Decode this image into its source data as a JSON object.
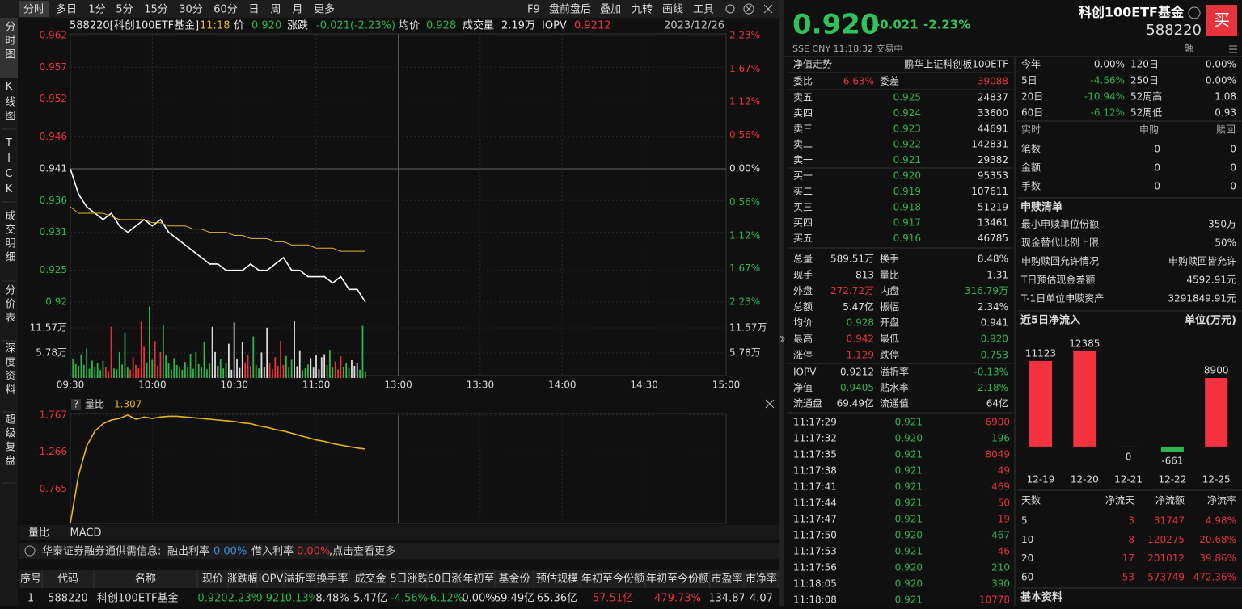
{
  "toolbar": {
    "periods": [
      "分时",
      "多日",
      "1分",
      "5分",
      "15分",
      "30分",
      "60分",
      "日",
      "周",
      "月",
      "更多"
    ],
    "tools": [
      "F9",
      "盘前盘后",
      "叠加",
      "九转",
      "画线",
      "工具"
    ]
  },
  "side_tabs": [
    "分时图",
    "K线图",
    "TICK",
    "成交明细",
    "分价表",
    "深度资料",
    "超级复盘"
  ],
  "chart_data": [
    {
      "type": "line",
      "header": [
        {
          "text": "588220[科创100ETF基金]",
          "color": "#e6e6e6"
        },
        {
          "text": "11:18",
          "color": "#e6b422"
        },
        {
          "text": "价",
          "color": "#e6e6e6"
        },
        {
          "text": "0.920",
          "color": "#2fb54a"
        },
        {
          "text": "涨跌",
          "color": "#e6e6e6"
        },
        {
          "text": "-0.021(-2.23%)",
          "color": "#2fb54a"
        },
        {
          "text": "均价",
          "color": "#e6e6e6"
        },
        {
          "text": "0.928",
          "color": "#2fb54a"
        },
        {
          "text": "成交量",
          "color": "#e6e6e6"
        },
        {
          "text": "2.19万",
          "color": "#e6e6e6"
        },
        {
          "text": "IOPV",
          "color": "#e6e6e6"
        },
        {
          "text": "0.9212",
          "color": "#e8323c"
        },
        {
          "text": "2023/12/26",
          "color": "#bbbbbb"
        }
      ],
      "x": [
        0,
        3,
        6,
        9,
        12,
        15,
        18,
        21,
        24,
        27,
        30,
        33,
        36,
        39,
        42,
        45,
        48,
        51,
        54,
        57,
        60,
        63,
        66,
        69,
        72,
        75,
        78,
        81,
        84,
        87,
        90,
        93,
        96,
        99,
        102,
        105,
        108
      ],
      "xlim": [
        0,
        240
      ],
      "xticks": [
        {
          "value": 0,
          "label": "09:30"
        },
        {
          "value": 30,
          "label": "10:00"
        },
        {
          "value": 60,
          "label": "10:30"
        },
        {
          "value": 90,
          "label": "11:00"
        },
        {
          "value": 120,
          "label": "13:00"
        },
        {
          "value": 150,
          "label": "13:30"
        },
        {
          "value": 180,
          "label": "14:00"
        },
        {
          "value": 210,
          "label": "14:30"
        },
        {
          "value": 240,
          "label": "15:00"
        }
      ],
      "ylim": [
        0.92,
        0.962
      ],
      "yticks": [
        0.962,
        0.957,
        0.952,
        0.946,
        0.941,
        0.936,
        0.931,
        0.925,
        0.92
      ],
      "y2lim": [
        -2.23,
        2.23
      ],
      "y2ticks": [
        {
          "value": 2.23,
          "label": "2.23%"
        },
        {
          "value": 1.67,
          "label": "1.67%"
        },
        {
          "value": 1.12,
          "label": "1.12%"
        },
        {
          "value": 0.56,
          "label": "0.56%"
        },
        {
          "value": 0,
          "label": "0.00%"
        },
        {
          "value": -0.56,
          "label": "0.56%"
        },
        {
          "value": -1.12,
          "label": "1.12%"
        },
        {
          "value": -1.67,
          "label": "1.67%"
        },
        {
          "value": -2.23,
          "label": "2.23%"
        }
      ],
      "up_color": "#e8323c",
      "down_color": "#2fb54a",
      "series": [
        {
          "color": "#ffffff",
          "values": [
            0.941,
            0.937,
            0.935,
            0.934,
            0.933,
            0.934,
            0.932,
            0.931,
            0.932,
            0.933,
            0.932,
            0.933,
            0.931,
            0.93,
            0.929,
            0.928,
            0.927,
            0.926,
            0.926,
            0.925,
            0.925,
            0.925,
            0.926,
            0.925,
            0.925,
            0.926,
            0.927,
            0.925,
            0.925,
            0.924,
            0.924,
            0.924,
            0.923,
            0.924,
            0.922,
            0.922,
            0.92
          ]
        },
        {
          "color": "#e6b422",
          "values": [
            0.935,
            0.934,
            0.934,
            0.934,
            0.934,
            0.9335,
            0.933,
            0.933,
            0.933,
            0.933,
            0.9325,
            0.9325,
            0.932,
            0.932,
            0.932,
            0.9315,
            0.9315,
            0.931,
            0.931,
            0.931,
            0.9305,
            0.9305,
            0.93,
            0.93,
            0.93,
            0.9295,
            0.9295,
            0.929,
            0.929,
            0.929,
            0.9285,
            0.9285,
            0.9285,
            0.928,
            0.928,
            0.928,
            0.928
          ]
        }
      ]
    },
    {
      "type": "bar",
      "x": [
        1,
        2,
        3,
        4,
        5,
        6,
        7,
        8,
        9,
        10,
        11,
        12,
        13,
        14,
        15,
        16,
        17,
        18,
        19,
        20,
        21,
        22,
        23,
        24,
        25,
        26,
        27,
        28,
        29,
        30,
        31,
        32,
        33,
        34,
        35,
        36,
        37,
        38,
        39,
        40,
        41,
        42,
        43,
        44,
        45,
        46,
        47,
        48,
        49,
        50,
        51,
        52,
        53,
        54,
        55,
        56,
        57,
        58,
        59,
        60,
        61,
        62,
        63,
        64,
        65,
        66,
        67,
        68,
        69,
        70,
        71,
        72,
        73,
        74,
        75,
        76,
        77,
        78,
        79,
        80,
        81,
        82,
        83,
        84,
        85,
        86,
        87,
        88,
        89,
        90,
        91,
        92,
        93,
        94,
        95,
        96,
        97,
        98,
        99,
        100,
        101,
        102,
        103,
        104,
        105,
        106,
        107,
        108
      ],
      "values": [
        4.5,
        3.2,
        2.8,
        5.5,
        3.0,
        6.8,
        2.1,
        4.0,
        2.6,
        3.5,
        1.8,
        3.9,
        2.5,
        1.6,
        11.8,
        2.2,
        2.0,
        6.0,
        3.1,
        10.5,
        2.4,
        1.9,
        4.8,
        3.0,
        2.2,
        13.0,
        7.2,
        3.6,
        16.5,
        4.2,
        8.5,
        2.8,
        6.0,
        12.2,
        5.2,
        3.4,
        2.0,
        4.6,
        3.0,
        2.5,
        1.9,
        3.7,
        2.6,
        5.6,
        2.1,
        6.0,
        3.2,
        2.4,
        8.4,
        2.0,
        3.3,
        11.8,
        6.0,
        2.8,
        4.4,
        2.2,
        3.5,
        7.9,
        1.9,
        12.8,
        4.4,
        2.3,
        8.2,
        3.6,
        5.4,
        2.8,
        9.6,
        3.0,
        2.2,
        5.9,
        2.6,
        11.6,
        3.4,
        2.0,
        4.8,
        2.8,
        8.6,
        3.0,
        5.1,
        2.4,
        4.2,
        13.2,
        2.7,
        6.4,
        1.8,
        2.2,
        3.1,
        4.6,
        2.4,
        5.2,
        2.0,
        4.8,
        5.5,
        3.0,
        6.5,
        2.4,
        3.8,
        2.0,
        5.0,
        2.6,
        3.4,
        2.2,
        4.1,
        2.8,
        3.5,
        1.9,
        12.0,
        1.5
      ],
      "ylim": [
        0,
        17.35
      ],
      "yticks": [
        {
          "value": 11.57,
          "label": "11.57万"
        },
        {
          "value": 5.78,
          "label": "5.78万"
        }
      ],
      "up_color": "#e8323c",
      "down_color": "#2fb54a",
      "flat_color": "#dddddd"
    },
    {
      "type": "line",
      "help": "?",
      "title": "量比",
      "current": 1.307,
      "x": [
        0,
        3,
        6,
        9,
        12,
        15,
        18,
        21,
        24,
        27,
        30,
        33,
        36,
        39,
        42,
        45,
        48,
        51,
        54,
        57,
        60,
        63,
        66,
        69,
        72,
        75,
        78,
        81,
        84,
        87,
        90,
        93,
        96,
        99,
        102,
        105,
        108
      ],
      "ylim": [
        0.3,
        1.787
      ],
      "yticks": [
        1.767,
        1.266,
        0.765
      ],
      "tick_color": "#e8323c",
      "series": [
        {
          "color": "#e6b422",
          "values": [
            0.3,
            0.95,
            1.35,
            1.55,
            1.65,
            1.7,
            1.72,
            1.767,
            1.71,
            1.74,
            1.72,
            1.74,
            1.75,
            1.75,
            1.74,
            1.73,
            1.72,
            1.71,
            1.7,
            1.69,
            1.68,
            1.66,
            1.65,
            1.62,
            1.6,
            1.57,
            1.55,
            1.52,
            1.49,
            1.46,
            1.43,
            1.41,
            1.38,
            1.36,
            1.34,
            1.32,
            1.307
          ]
        }
      ]
    },
    {
      "type": "bar",
      "title": "近5日净流入",
      "unit": "单位(万元)",
      "categories": [
        "12-19",
        "12-20",
        "12-21",
        "12-22",
        "12-25"
      ],
      "values": [
        11123,
        12385,
        0,
        -661,
        8900
      ],
      "ylim": [
        -2000,
        13000
      ],
      "up_color": "#f5333f",
      "down_color": "#2fb54a"
    }
  ],
  "bottom_tabs": [
    "量比",
    "MACD"
  ],
  "notice": {
    "source": "华泰证券融券通供需信息:",
    "lend_label": "融出利率",
    "lend_rate": "0.00%",
    "borrow_label": "借入利率",
    "borrow_rate": "0.00%",
    "more": ",点击查看更多"
  },
  "table": {
    "header": [
      "序号",
      "代码",
      "名称",
      "现价",
      "涨跌幅",
      "IOPV",
      "溢折率",
      "换手率",
      "成交金",
      "5日涨跌",
      "60日涨",
      "年初至",
      "基金份",
      "预估规模",
      "年初至今份额",
      "年初至今份额",
      "市盈率",
      "市净率"
    ],
    "rows": [
      [
        "1",
        "588220",
        "科创100ETF基金",
        "0.920",
        "-2.23%",
        "0.921",
        "-0.13%",
        "8.48%",
        "5.47亿",
        "-4.56%",
        "-6.12%",
        "0.00%",
        "69.49亿",
        "65.36亿",
        "57.51亿",
        "479.73%",
        "134.87",
        "4.07"
      ]
    ],
    "colors": [
      [
        "#ddd",
        "#ddd",
        "#ddd",
        "#2fb54a",
        "#2fb54a",
        "#2fb54a",
        "#2fb54a",
        "#ddd",
        "#ddd",
        "#2fb54a",
        "#2fb54a",
        "#ddd",
        "#ddd",
        "#ddd",
        "#e8323c",
        "#e8323c",
        "#ddd",
        "#ddd"
      ]
    ]
  },
  "quote": {
    "name": "科创100ETF基金",
    "code": "588220",
    "buy": "买",
    "price": "0.920",
    "change": "-0.021",
    "change_pct": "-2.23%",
    "status": "SSE  CNY  11:18:32  交易中",
    "margin": "融",
    "color": "#2fc25b"
  },
  "nav": {
    "label": "净值走势",
    "index": "鹏华上证科创板100ETF"
  },
  "commission": [
    {
      "label": "委比",
      "value": "6.63%",
      "color": "#e8323c"
    },
    {
      "label": "委差",
      "value": "39088",
      "color": "#e8323c"
    }
  ],
  "order_book": {
    "price_color": "#2fb54a",
    "rows": [
      {
        "label": "卖五",
        "price": "0.925",
        "volume": "24837"
      },
      {
        "label": "卖四",
        "price": "0.924",
        "volume": "33600"
      },
      {
        "label": "卖三",
        "price": "0.923",
        "volume": "44691"
      },
      {
        "label": "卖二",
        "price": "0.922",
        "volume": "142831"
      },
      {
        "label": "卖一",
        "price": "0.921",
        "volume": "29382"
      },
      {
        "label": "买一",
        "price": "0.920",
        "volume": "95353"
      },
      {
        "label": "买二",
        "price": "0.919",
        "volume": "107611"
      },
      {
        "label": "买三",
        "price": "0.918",
        "volume": "51219"
      },
      {
        "label": "买四",
        "price": "0.917",
        "volume": "13461"
      },
      {
        "label": "买五",
        "price": "0.916",
        "volume": "46785"
      }
    ]
  },
  "stats": [
    [
      {
        "label": "总量",
        "value": "589.51万"
      },
      {
        "label": "换手",
        "value": "8.48%"
      }
    ],
    [
      {
        "label": "现手",
        "value": "813"
      },
      {
        "label": "量比",
        "value": "1.31"
      }
    ],
    [
      {
        "label": "外盘",
        "value": "272.72万",
        "color": "#e8323c"
      },
      {
        "label": "内盘",
        "value": "316.79万",
        "color": "#2fb54a"
      }
    ],
    [
      {
        "label": "总额",
        "value": "5.47亿"
      },
      {
        "label": "振幅",
        "value": "2.34%"
      }
    ],
    [
      {
        "label": "均价",
        "value": "0.928",
        "color": "#2fb54a"
      },
      {
        "label": "开盘",
        "value": "0.941"
      }
    ],
    [
      {
        "label": "最高",
        "value": "0.942",
        "color": "#e8323c"
      },
      {
        "label": "最低",
        "value": "0.920",
        "color": "#2fb54a"
      }
    ],
    [
      {
        "label": "涨停",
        "value": "1.129",
        "color": "#e8323c"
      },
      {
        "label": "跌停",
        "value": "0.753",
        "color": "#2fb54a"
      }
    ]
  ],
  "fund_stats": [
    [
      {
        "label": "IOPV",
        "value": "0.9212"
      },
      {
        "label": "溢折率",
        "value": "-0.13%",
        "color": "#2fb54a"
      }
    ],
    [
      {
        "label": "净值",
        "value": "0.9405",
        "color": "#2fb54a"
      },
      {
        "label": "贴水率",
        "value": "-2.18%",
        "color": "#2fb54a"
      }
    ],
    [
      {
        "label": "流通盘",
        "value": "69.49亿"
      },
      {
        "label": "流通值",
        "value": "64亿"
      }
    ]
  ],
  "trades": [
    {
      "time": "11:17:29",
      "price": "0.921",
      "volume": "6900",
      "color": "#e8323c"
    },
    {
      "time": "11:17:32",
      "price": "0.920",
      "volume": "196",
      "color": "#2fb54a"
    },
    {
      "time": "11:17:35",
      "price": "0.921",
      "volume": "8049",
      "color": "#e8323c"
    },
    {
      "time": "11:17:38",
      "price": "0.921",
      "volume": "49",
      "color": "#e8323c"
    },
    {
      "time": "11:17:41",
      "price": "0.921",
      "volume": "469",
      "color": "#e8323c"
    },
    {
      "time": "11:17:44",
      "price": "0.921",
      "volume": "50",
      "color": "#e8323c"
    },
    {
      "time": "11:17:47",
      "price": "0.921",
      "volume": "19",
      "color": "#e8323c"
    },
    {
      "time": "11:17:50",
      "price": "0.920",
      "volume": "467",
      "color": "#2fb54a"
    },
    {
      "time": "11:17:53",
      "price": "0.921",
      "volume": "46",
      "color": "#e8323c"
    },
    {
      "time": "11:17:56",
      "price": "0.920",
      "volume": "210",
      "color": "#2fb54a"
    },
    {
      "time": "11:18:05",
      "price": "0.920",
      "volume": "390",
      "color": "#2fb54a"
    },
    {
      "time": "11:18:08",
      "price": "0.921",
      "volume": "10778",
      "color": "#e8323c"
    }
  ],
  "returns": [
    [
      {
        "label": "今年",
        "value": "0.00%"
      },
      {
        "label": "120日",
        "value": "0.00%"
      }
    ],
    [
      {
        "label": "5日",
        "value": "-4.56%",
        "color": "#2fb54a"
      },
      {
        "label": "250日",
        "value": "0.00%"
      }
    ],
    [
      {
        "label": "20日",
        "value": "-10.94%",
        "color": "#2fb54a"
      },
      {
        "label": "52周高",
        "value": "1.08"
      }
    ],
    [
      {
        "label": "60日",
        "value": "-6.12%",
        "color": "#2fb54a"
      },
      {
        "label": "52周低",
        "value": "0.93"
      }
    ]
  ],
  "realtime": {
    "header": [
      "实时",
      "申购",
      "赎回"
    ],
    "rows": [
      [
        "笔数",
        "0",
        "0"
      ],
      [
        "金额",
        "0",
        "0"
      ],
      [
        "手数",
        "0",
        "0"
      ]
    ]
  },
  "creation": {
    "title": "申赎清单",
    "rows": [
      [
        "最小申赎单位份额",
        "350万"
      ],
      [
        "现金替代比例上限",
        "50%"
      ],
      [
        "申购赎回允许情况",
        "申购赎回皆允许"
      ],
      [
        "T日预估现金差额",
        "4592.91元"
      ],
      [
        "T-1日单位申赎资产",
        "3291849.91元"
      ]
    ]
  },
  "flow_table": {
    "header": [
      "天数",
      "净流天",
      "净流额",
      "净流率"
    ],
    "rows": [
      [
        "5",
        "3",
        "31747",
        "4.98%"
      ],
      [
        "10",
        "8",
        "120275",
        "20.68%"
      ],
      [
        "20",
        "17",
        "201012",
        "39.86%"
      ],
      [
        "60",
        "53",
        "573749",
        "472.36%"
      ]
    ],
    "color": "#e8323c"
  },
  "basic": "基本资料"
}
